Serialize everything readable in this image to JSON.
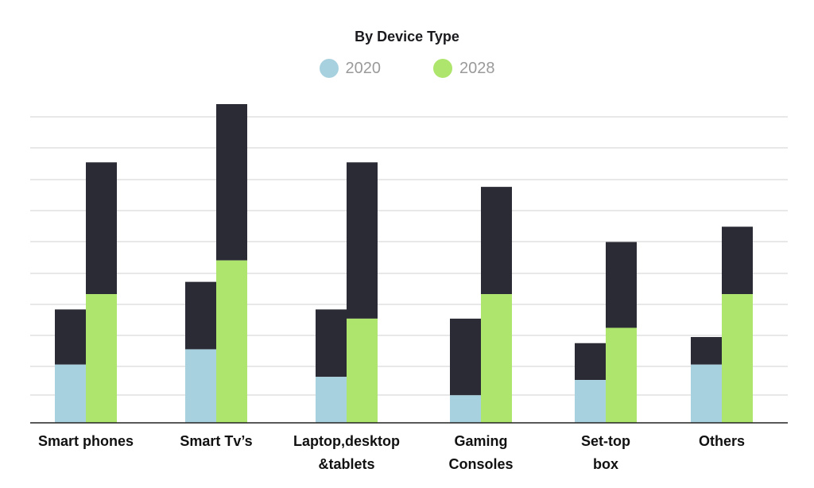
{
  "chart_data": {
    "type": "bar",
    "stacked": true,
    "title": "By Device Type",
    "categories": [
      [
        "Smart phones"
      ],
      [
        "Smart Tv’s"
      ],
      [
        "Laptop,desktop",
        "&tablets"
      ],
      [
        "Gaming",
        "Consoles"
      ],
      [
        "Set-top",
        "box"
      ],
      [
        "Others"
      ]
    ],
    "legend": [
      {
        "name": "2020",
        "color": "#a8d1df"
      },
      {
        "name": "2028",
        "color": "#aee56c"
      }
    ],
    "series": [
      {
        "name": "2020",
        "color": "#a8d1df",
        "values": [
          1.9,
          2.4,
          1.5,
          0.9,
          1.4,
          1.9
        ],
        "totals": [
          3.7,
          4.6,
          3.7,
          3.4,
          2.6,
          2.8
        ]
      },
      {
        "name": "2028",
        "color": "#aee56c",
        "values": [
          4.2,
          5.3,
          3.4,
          4.2,
          3.1,
          4.2
        ],
        "totals": [
          8.5,
          10.4,
          8.5,
          7.7,
          5.9,
          6.4
        ]
      }
    ],
    "stack_color": "#2b2b36",
    "ylim": [
      0,
      10.4
    ],
    "grid": true,
    "y_tick_labels": false,
    "legend_position": "top-center"
  }
}
